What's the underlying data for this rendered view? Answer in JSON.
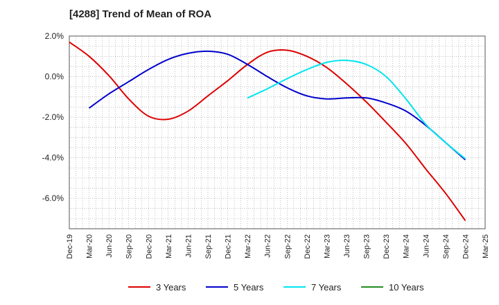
{
  "chart_data": {
    "type": "line",
    "title": "[4288]  Trend of Mean of ROA",
    "xlabel": "",
    "ylabel": "",
    "x_ticks": [
      "Dec-19",
      "Mar-20",
      "Jun-20",
      "Sep-20",
      "Dec-20",
      "Mar-21",
      "Jun-21",
      "Sep-21",
      "Dec-21",
      "Mar-22",
      "Jun-22",
      "Sep-22",
      "Dec-22",
      "Mar-23",
      "Jun-23",
      "Sep-23",
      "Dec-23",
      "Mar-24",
      "Jun-24",
      "Sep-24",
      "Dec-24",
      "Mar-25"
    ],
    "y_ticks": [
      "2.0%",
      "0.0%",
      "-2.0%",
      "-4.0%",
      "-6.0%"
    ],
    "y_tick_values": [
      2.0,
      0.0,
      -2.0,
      -4.0,
      -6.0
    ],
    "ylim": [
      -7.5,
      2.0
    ],
    "grid": true,
    "legend_position": "bottom",
    "series": [
      {
        "name": "3 Years",
        "color": "#dd0000",
        "x_index": [
          0,
          1,
          2,
          3,
          4,
          5,
          6,
          7,
          8,
          9,
          10,
          11,
          12,
          13,
          14,
          15,
          16,
          17,
          18,
          19,
          20
        ],
        "values": [
          1.7,
          1.0,
          0.05,
          -1.1,
          -1.95,
          -2.1,
          -1.7,
          -0.95,
          -0.2,
          0.6,
          1.2,
          1.3,
          1.0,
          0.45,
          -0.35,
          -1.25,
          -2.25,
          -3.3,
          -4.55,
          -5.75,
          -7.1
        ]
      },
      {
        "name": "5 Years",
        "color": "#0000cc",
        "x_index": [
          1,
          2,
          3,
          4,
          5,
          6,
          7,
          8,
          9,
          10,
          11,
          12,
          13,
          14,
          15,
          16,
          17,
          18,
          19,
          20
        ],
        "values": [
          -1.55,
          -0.85,
          -0.25,
          0.35,
          0.85,
          1.15,
          1.25,
          1.1,
          0.6,
          0.0,
          -0.55,
          -0.95,
          -1.1,
          -1.05,
          -1.05,
          -1.3,
          -1.7,
          -2.4,
          -3.25,
          -4.1
        ]
      },
      {
        "name": "7 Years",
        "color": "#00e5ee",
        "x_index": [
          9,
          10,
          11,
          12,
          13,
          14,
          15,
          16,
          17,
          18,
          19,
          20
        ],
        "values": [
          -1.05,
          -0.6,
          -0.1,
          0.35,
          0.7,
          0.8,
          0.6,
          0.0,
          -1.1,
          -2.35,
          -3.25,
          -4.05
        ]
      },
      {
        "name": "10 Years",
        "color": "#228b22",
        "x_index": [],
        "values": []
      }
    ]
  }
}
